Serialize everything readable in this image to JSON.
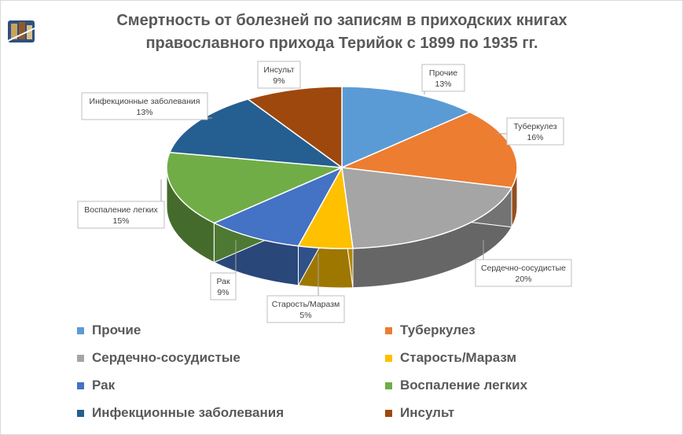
{
  "chart_data": {
    "type": "pie",
    "title_lines": [
      "Смертность от болезней по записям в приходских книгах",
      "православного прихода Терийок с 1899 по 1935 гг."
    ],
    "slices": [
      {
        "name": "Прочие",
        "value": 13,
        "label": "13%",
        "color": "#5b9bd5"
      },
      {
        "name": "Туберкулез",
        "value": 16,
        "label": "16%",
        "color": "#ed7d31"
      },
      {
        "name": "Сердечно-сосудистые",
        "value": 20,
        "label": "20%",
        "color": "#a5a5a5"
      },
      {
        "name": "Старость/Маразм",
        "value": 5,
        "label": "5%",
        "color": "#ffc000"
      },
      {
        "name": "Рак",
        "value": 9,
        "label": "9%",
        "color": "#4472c4"
      },
      {
        "name": "Воспаление легких",
        "value": 15,
        "label": "15%",
        "color": "#70ad47"
      },
      {
        "name": "Инфекционные заболевания",
        "value": 13,
        "label": "13%",
        "color": "#255e91"
      },
      {
        "name": "Инсульт",
        "value": 9,
        "label": "9%",
        "color": "#9e480e"
      }
    ],
    "legend_position": "bottom"
  }
}
